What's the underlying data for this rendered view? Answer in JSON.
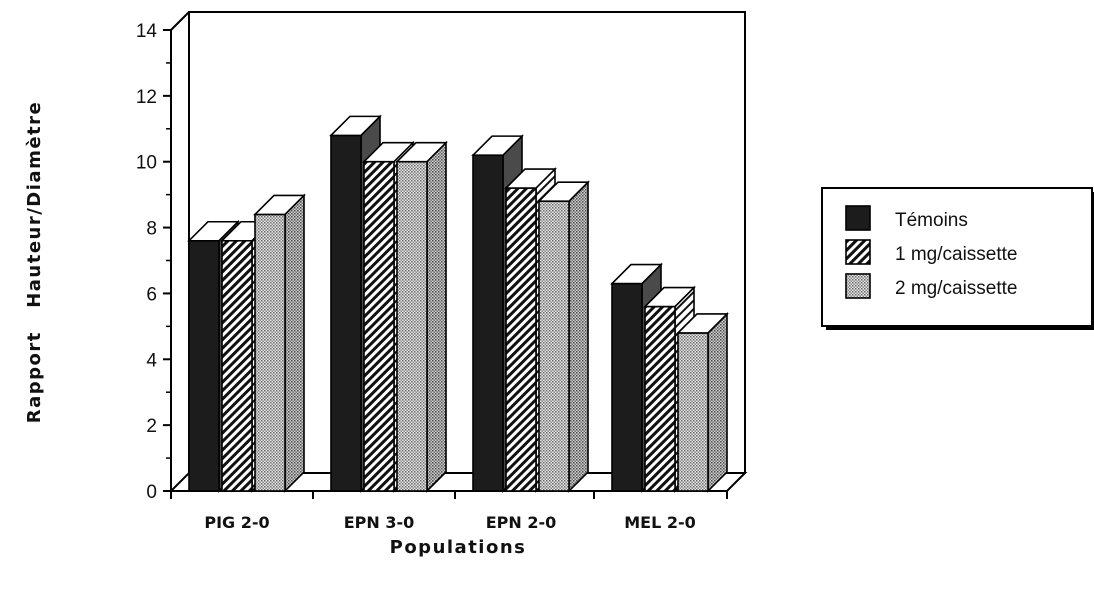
{
  "chart_data": {
    "type": "bar",
    "categories": [
      "PIG  2-0",
      "EPN  3-0",
      "EPN  2-0",
      "MEL  2-0"
    ],
    "series": [
      {
        "name": "Témoins",
        "values": [
          7.6,
          10.8,
          10.2,
          6.3
        ],
        "pattern": "solid"
      },
      {
        "name": "1 mg/caissette",
        "values": [
          7.6,
          10.0,
          9.2,
          5.6
        ],
        "pattern": "hatch"
      },
      {
        "name": "2 mg/caissette",
        "values": [
          8.4,
          10.0,
          8.8,
          4.8
        ],
        "pattern": "dots"
      }
    ],
    "xlabel": "Populations",
    "ylabel": "Rapport   Hauteur/Diamètre",
    "ylim": [
      0,
      14
    ],
    "yticks": [
      "0",
      "2",
      "4",
      "6",
      "8",
      "10",
      "12",
      "14"
    ],
    "legend_position": "right",
    "grid": false,
    "three_d": true
  },
  "colors": {
    "solid_front": "#1c1c1c",
    "solid_side": "#4a4a4a",
    "solid_top": "#ffffff",
    "stroke": "#000000",
    "dots": "#9a9a9a"
  }
}
